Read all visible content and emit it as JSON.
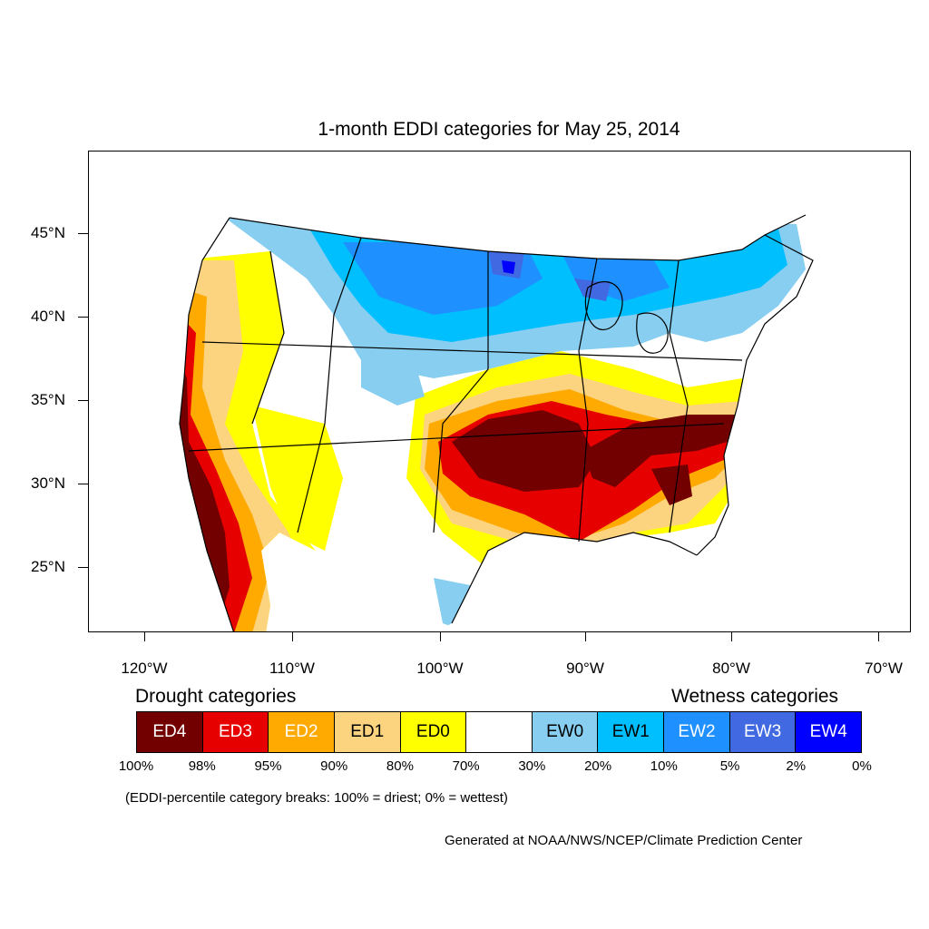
{
  "title": "1-month EDDI categories for May 25, 2014",
  "map": {
    "lat_labels": [
      "45°N",
      "40°N",
      "35°N",
      "30°N",
      "25°N"
    ],
    "lon_labels": [
      "120°W",
      "110°W",
      "100°W",
      "90°W",
      "80°W",
      "70°W"
    ]
  },
  "legend": {
    "drought_heading": "Drought categories",
    "wetness_heading": "Wetness categories",
    "categories": [
      {
        "label": "ED4",
        "color": "#730000",
        "text_color": "#ffffff"
      },
      {
        "label": "ED3",
        "color": "#e60000",
        "text_color": "#ffffff"
      },
      {
        "label": "ED2",
        "color": "#ffaa00",
        "text_color": "#ffffff"
      },
      {
        "label": "ED1",
        "color": "#fcd37f",
        "text_color": "#000000"
      },
      {
        "label": "ED0",
        "color": "#ffff00",
        "text_color": "#000000"
      },
      {
        "label": "",
        "color": "#ffffff",
        "text_color": "#000000"
      },
      {
        "label": "EW0",
        "color": "#87cef0",
        "text_color": "#000000"
      },
      {
        "label": "EW1",
        "color": "#00bfff",
        "text_color": "#000000"
      },
      {
        "label": "EW2",
        "color": "#1e90ff",
        "text_color": "#ffffff"
      },
      {
        "label": "EW3",
        "color": "#4169e1",
        "text_color": "#ffffff"
      },
      {
        "label": "EW4",
        "color": "#0000ff",
        "text_color": "#ffffff"
      }
    ],
    "breaks": [
      "100%",
      "98%",
      "95%",
      "90%",
      "80%",
      "70%",
      "30%",
      "20%",
      "10%",
      "5%",
      "2%",
      "0%"
    ]
  },
  "note": "(EDDI-percentile category breaks: 100% = driest; 0% = wettest)",
  "credit": "Generated at NOAA/NWS/NCEP/Climate Prediction Center"
}
